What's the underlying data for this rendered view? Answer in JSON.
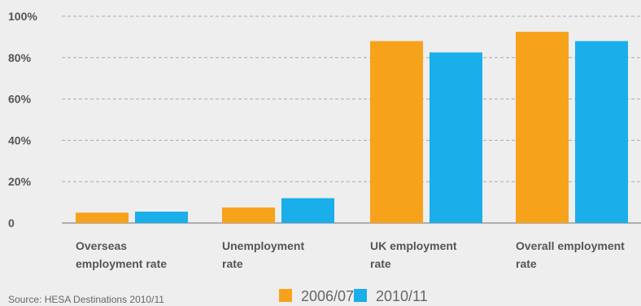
{
  "chart_data": {
    "type": "bar",
    "categories": [
      [
        "Overseas",
        "employment rate"
      ],
      [
        "Unemployment",
        "rate"
      ],
      [
        "UK employment",
        "rate"
      ],
      [
        "Overall employment",
        "rate"
      ]
    ],
    "series": [
      {
        "name": "2006/07",
        "color": "#f7a21b",
        "values": [
          5,
          7.5,
          88,
          92.5
        ]
      },
      {
        "name": "2010/11",
        "color": "#1aaeea",
        "values": [
          5.5,
          12,
          82.5,
          88
        ]
      }
    ],
    "yticks": [
      "0",
      "20%",
      "40%",
      "60%",
      "80%",
      "100%"
    ],
    "ylim": [
      0,
      100
    ],
    "grid": true,
    "legend_position": "bottom-center",
    "source": "Source: HESA Destinations 2010/11"
  },
  "colors": {
    "background": "#eeeeee",
    "grid": "#aaaaaa",
    "axis": "#999999",
    "text": "#555555"
  }
}
